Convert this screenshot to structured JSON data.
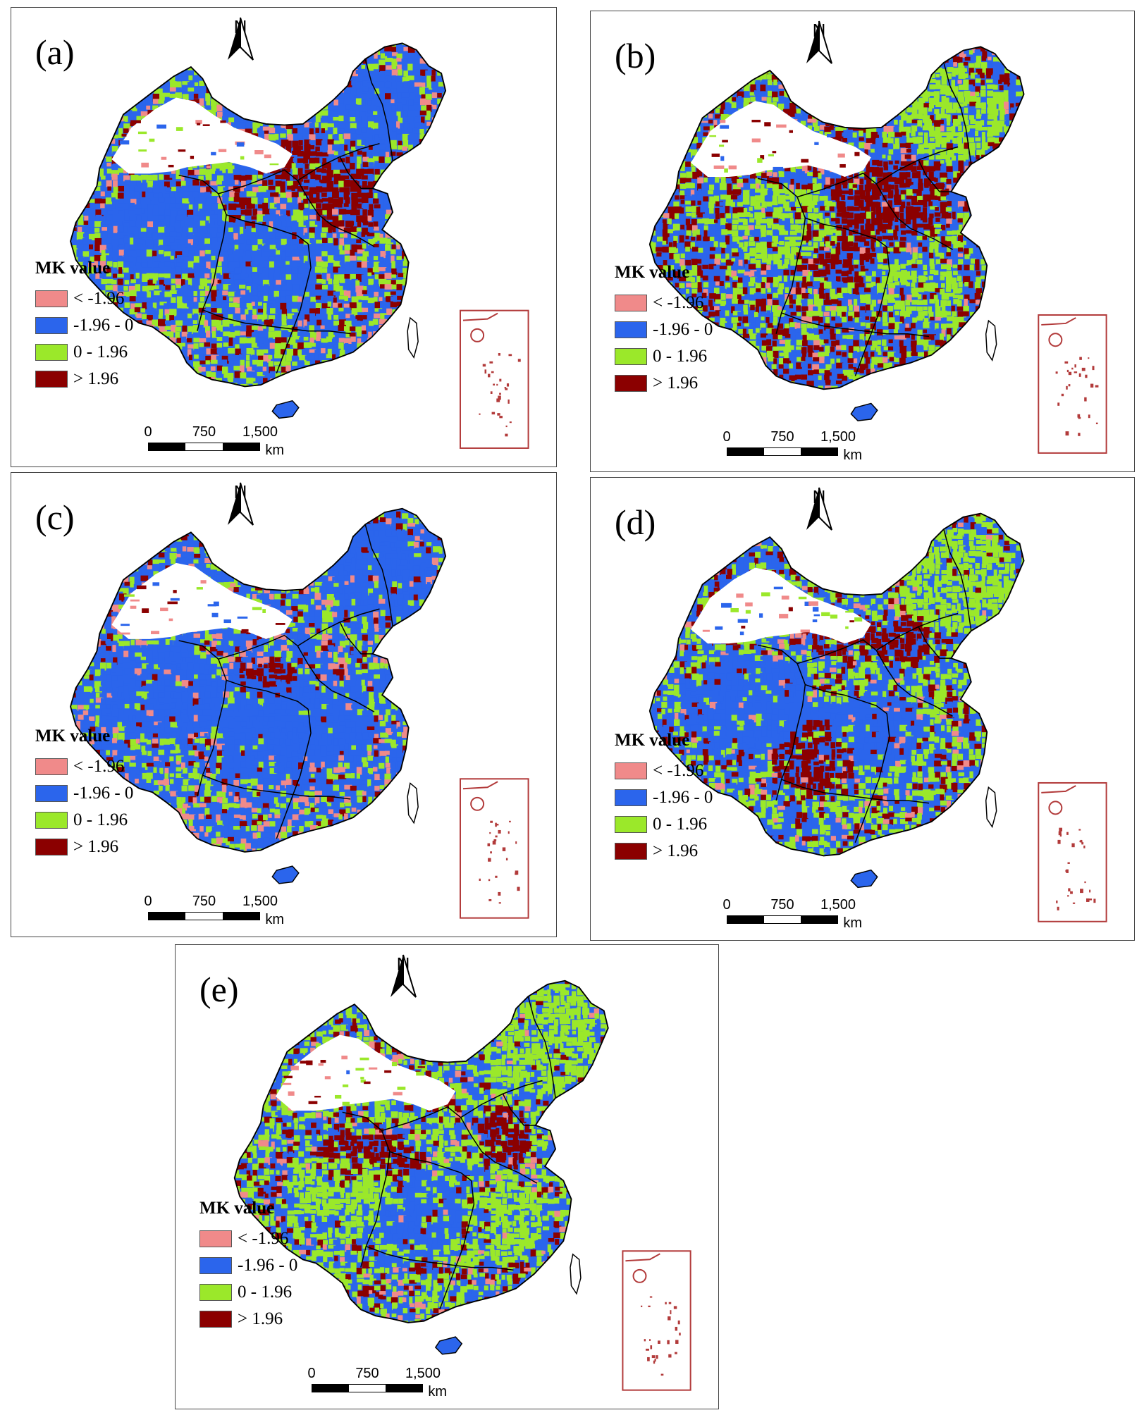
{
  "legend": {
    "title": "MK value",
    "items": [
      {
        "label": "< -1.96",
        "color": "#f08a8a"
      },
      {
        "label": "-1.96 - 0",
        "color": "#2b65ec"
      },
      {
        "label": "0 - 1.96",
        "color": "#9be82a"
      },
      {
        "label": "> 1.96",
        "color": "#8b0000"
      }
    ]
  },
  "north_label": "N",
  "scale": {
    "ticks": [
      "0",
      "750",
      "1,500"
    ],
    "unit": "km"
  },
  "panels": [
    {
      "label": "(a)"
    },
    {
      "label": "(b)"
    },
    {
      "label": "(c)"
    },
    {
      "label": "(d)"
    },
    {
      "label": "(e)"
    }
  ],
  "colors": {
    "boundary": "#000000",
    "inset_border": "#b23a3a",
    "desert": "#ffffff"
  }
}
